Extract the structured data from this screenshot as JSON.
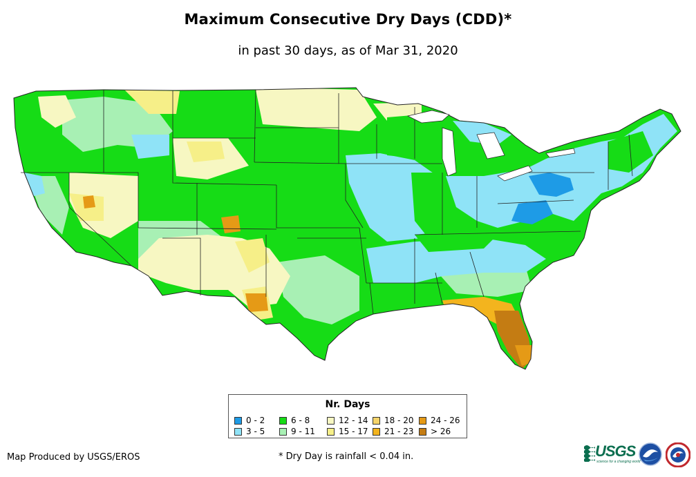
{
  "header": {
    "title": "Maximum Consecutive Dry Days (CDD)*",
    "subtitle": "in past 30 days, as of Mar 31, 2020"
  },
  "legend": {
    "title": "Nr. Days",
    "items": [
      {
        "label": "0 - 2",
        "color": "#1e9be6"
      },
      {
        "label": "3 - 5",
        "color": "#8fe3f7"
      },
      {
        "label": "6 - 8",
        "color": "#16dc16"
      },
      {
        "label": "9 - 11",
        "color": "#a8f0b4"
      },
      {
        "label": "12 - 14",
        "color": "#f7f7c2"
      },
      {
        "label": "15 - 17",
        "color": "#f6ef88"
      },
      {
        "label": "18 - 20",
        "color": "#f5d46a"
      },
      {
        "label": "21 - 23",
        "color": "#f3b41e"
      },
      {
        "label": "24 - 26",
        "color": "#e59a16"
      },
      {
        "label": "> 26",
        "color": "#c47c13"
      }
    ]
  },
  "footer": {
    "credit": "Map Produced by USGS/EROS",
    "footnote": "* Dry Day is rainfall < 0.04 in.",
    "usgs_text": "USGS",
    "usgs_tagline": "science for a changing world"
  }
}
